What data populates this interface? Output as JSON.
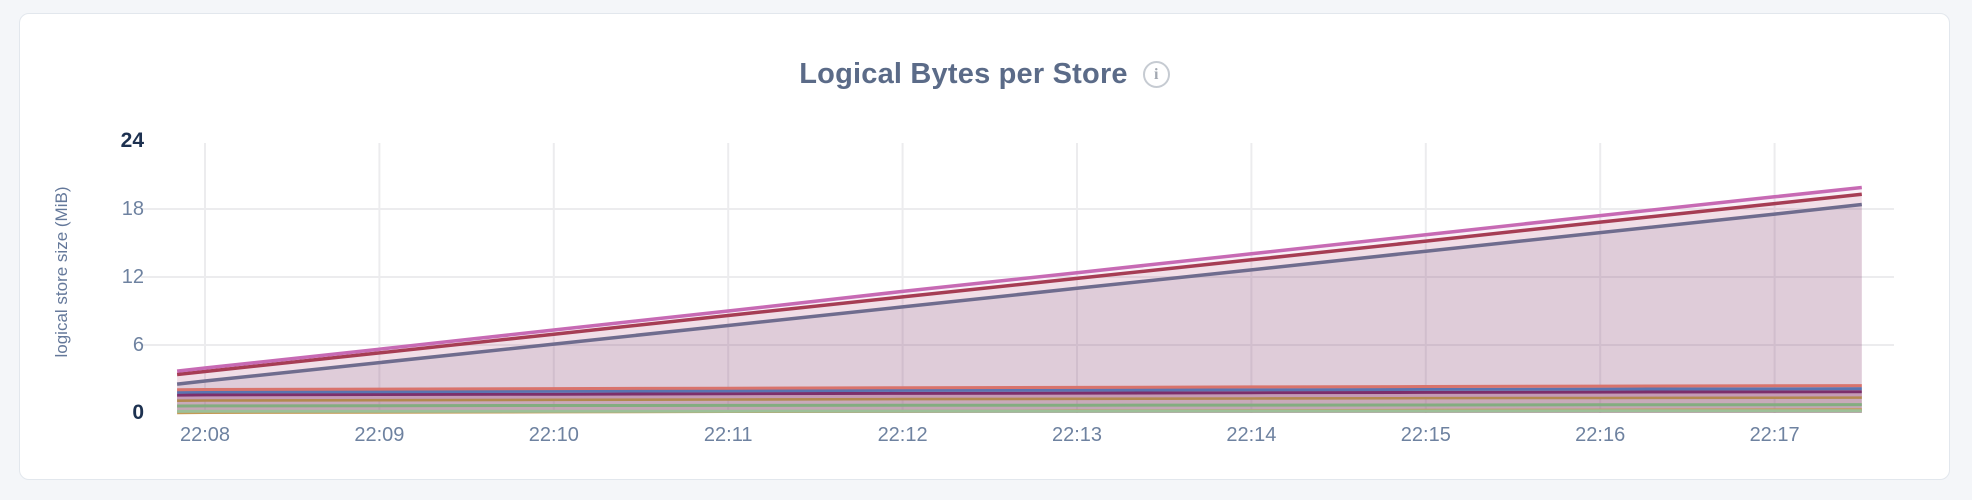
{
  "page": {
    "background": "#f4f6f9"
  },
  "card": {
    "background": "#ffffff",
    "border_color": "#e2e7ed"
  },
  "header": {
    "title": "Logical Bytes per Store",
    "title_color": "#5b6b88",
    "info_icon_glyph": "i"
  },
  "chart_data": {
    "type": "area",
    "title": "Logical Bytes per Store",
    "xlabel": "",
    "ylabel": "logical store size (MiB)",
    "ylim": [
      0,
      24
    ],
    "grid": true,
    "legend": "none",
    "grid_color": "#ececee",
    "tick_color": "#6e82a0",
    "tick_emphasis_color": "#1d3150",
    "yticks": [
      {
        "value": 24,
        "label": "24",
        "emphasis": true
      },
      {
        "value": 18,
        "label": "18",
        "emphasis": false
      },
      {
        "value": 12,
        "label": "12",
        "emphasis": false
      },
      {
        "value": 6,
        "label": "6",
        "emphasis": false
      },
      {
        "value": 0,
        "label": "0",
        "emphasis": true
      }
    ],
    "xticks": [
      {
        "t": 0,
        "label": "22:08"
      },
      {
        "t": 1,
        "label": "22:09"
      },
      {
        "t": 2,
        "label": "22:10"
      },
      {
        "t": 3,
        "label": "22:11"
      },
      {
        "t": 4,
        "label": "22:12"
      },
      {
        "t": 5,
        "label": "22:13"
      },
      {
        "t": 6,
        "label": "22:14"
      },
      {
        "t": 7,
        "label": "22:15"
      },
      {
        "t": 8,
        "label": "22:16"
      },
      {
        "t": 9,
        "label": "22:17"
      }
    ],
    "x_minutes": [
      -0.16,
      0,
      1,
      2,
      3,
      4,
      5,
      6,
      7,
      8,
      9,
      9.5
    ],
    "x_domain_minutes": [
      -0.16,
      9.5
    ],
    "series": [
      {
        "id": "store-violet",
        "color": "#c76ab4",
        "fill_opacity": 0.1,
        "width": 3.5,
        "values": [
          3.7,
          3.97,
          5.63,
          7.32,
          9.0,
          10.73,
          12.38,
          14.05,
          15.73,
          17.42,
          19.08,
          19.9
        ]
      },
      {
        "id": "store-crimson",
        "color": "#a63d54",
        "fill_opacity": 0.1,
        "width": 3.5,
        "values": [
          3.4,
          3.66,
          5.3,
          6.95,
          8.6,
          10.24,
          11.88,
          13.52,
          15.17,
          16.84,
          18.48,
          19.3
        ]
      },
      {
        "id": "store-slate",
        "color": "#6f6c8e",
        "fill_opacity": 0.15,
        "width": 3.5,
        "values": [
          2.55,
          2.82,
          4.45,
          6.08,
          7.72,
          9.36,
          11.0,
          12.63,
          14.28,
          15.92,
          17.55,
          18.4
        ]
      },
      {
        "id": "store-salmon",
        "color": "#d9736c",
        "fill_opacity": 0.08,
        "width": 3,
        "values": [
          2.05,
          2.07,
          2.11,
          2.15,
          2.19,
          2.23,
          2.26,
          2.3,
          2.34,
          2.37,
          2.4,
          2.42
        ]
      },
      {
        "id": "store-blue",
        "color": "#5a74b0",
        "fill_opacity": 0.08,
        "width": 3,
        "values": [
          1.83,
          1.85,
          1.88,
          1.92,
          1.95,
          1.99,
          2.02,
          2.05,
          2.08,
          2.11,
          2.13,
          2.15
        ]
      },
      {
        "id": "store-magenta",
        "color": "#7c2f6b",
        "fill_opacity": 0.08,
        "width": 3,
        "values": [
          1.58,
          1.6,
          1.63,
          1.66,
          1.7,
          1.73,
          1.76,
          1.79,
          1.82,
          1.84,
          1.86,
          1.88
        ]
      },
      {
        "id": "store-mauve",
        "color": "#c49ab6",
        "fill_opacity": 0.08,
        "width": 3,
        "values": [
          1.33,
          1.35,
          1.38,
          1.41,
          1.44,
          1.47,
          1.5,
          1.53,
          1.55,
          1.57,
          1.59,
          1.6
        ]
      },
      {
        "id": "store-tan",
        "color": "#b3894f",
        "fill_opacity": 0.08,
        "width": 3,
        "values": [
          1.1,
          1.12,
          1.15,
          1.18,
          1.21,
          1.24,
          1.27,
          1.3,
          1.33,
          1.35,
          1.37,
          1.38
        ]
      },
      {
        "id": "store-green",
        "color": "#83ad80",
        "fill_opacity": 0.08,
        "width": 3,
        "values": [
          0.62,
          0.63,
          0.64,
          0.66,
          0.67,
          0.68,
          0.69,
          0.7,
          0.71,
          0.72,
          0.73,
          0.74
        ]
      },
      {
        "id": "store-lightgreen",
        "color": "#9dbf98",
        "fill_opacity": 0.06,
        "width": 3,
        "values": [
          0.14,
          0.15,
          0.15,
          0.16,
          0.16,
          0.17,
          0.17,
          0.18,
          0.18,
          0.19,
          0.19,
          0.2
        ]
      },
      {
        "id": "store-gold",
        "color": "#c49a55",
        "fill_opacity": 0.08,
        "width": 3,
        "values": [
          0.02,
          0.04,
          0.07,
          0.1,
          0.13,
          0.16,
          0.19,
          0.21,
          0.24,
          0.26,
          0.27,
          0.28
        ]
      }
    ]
  }
}
